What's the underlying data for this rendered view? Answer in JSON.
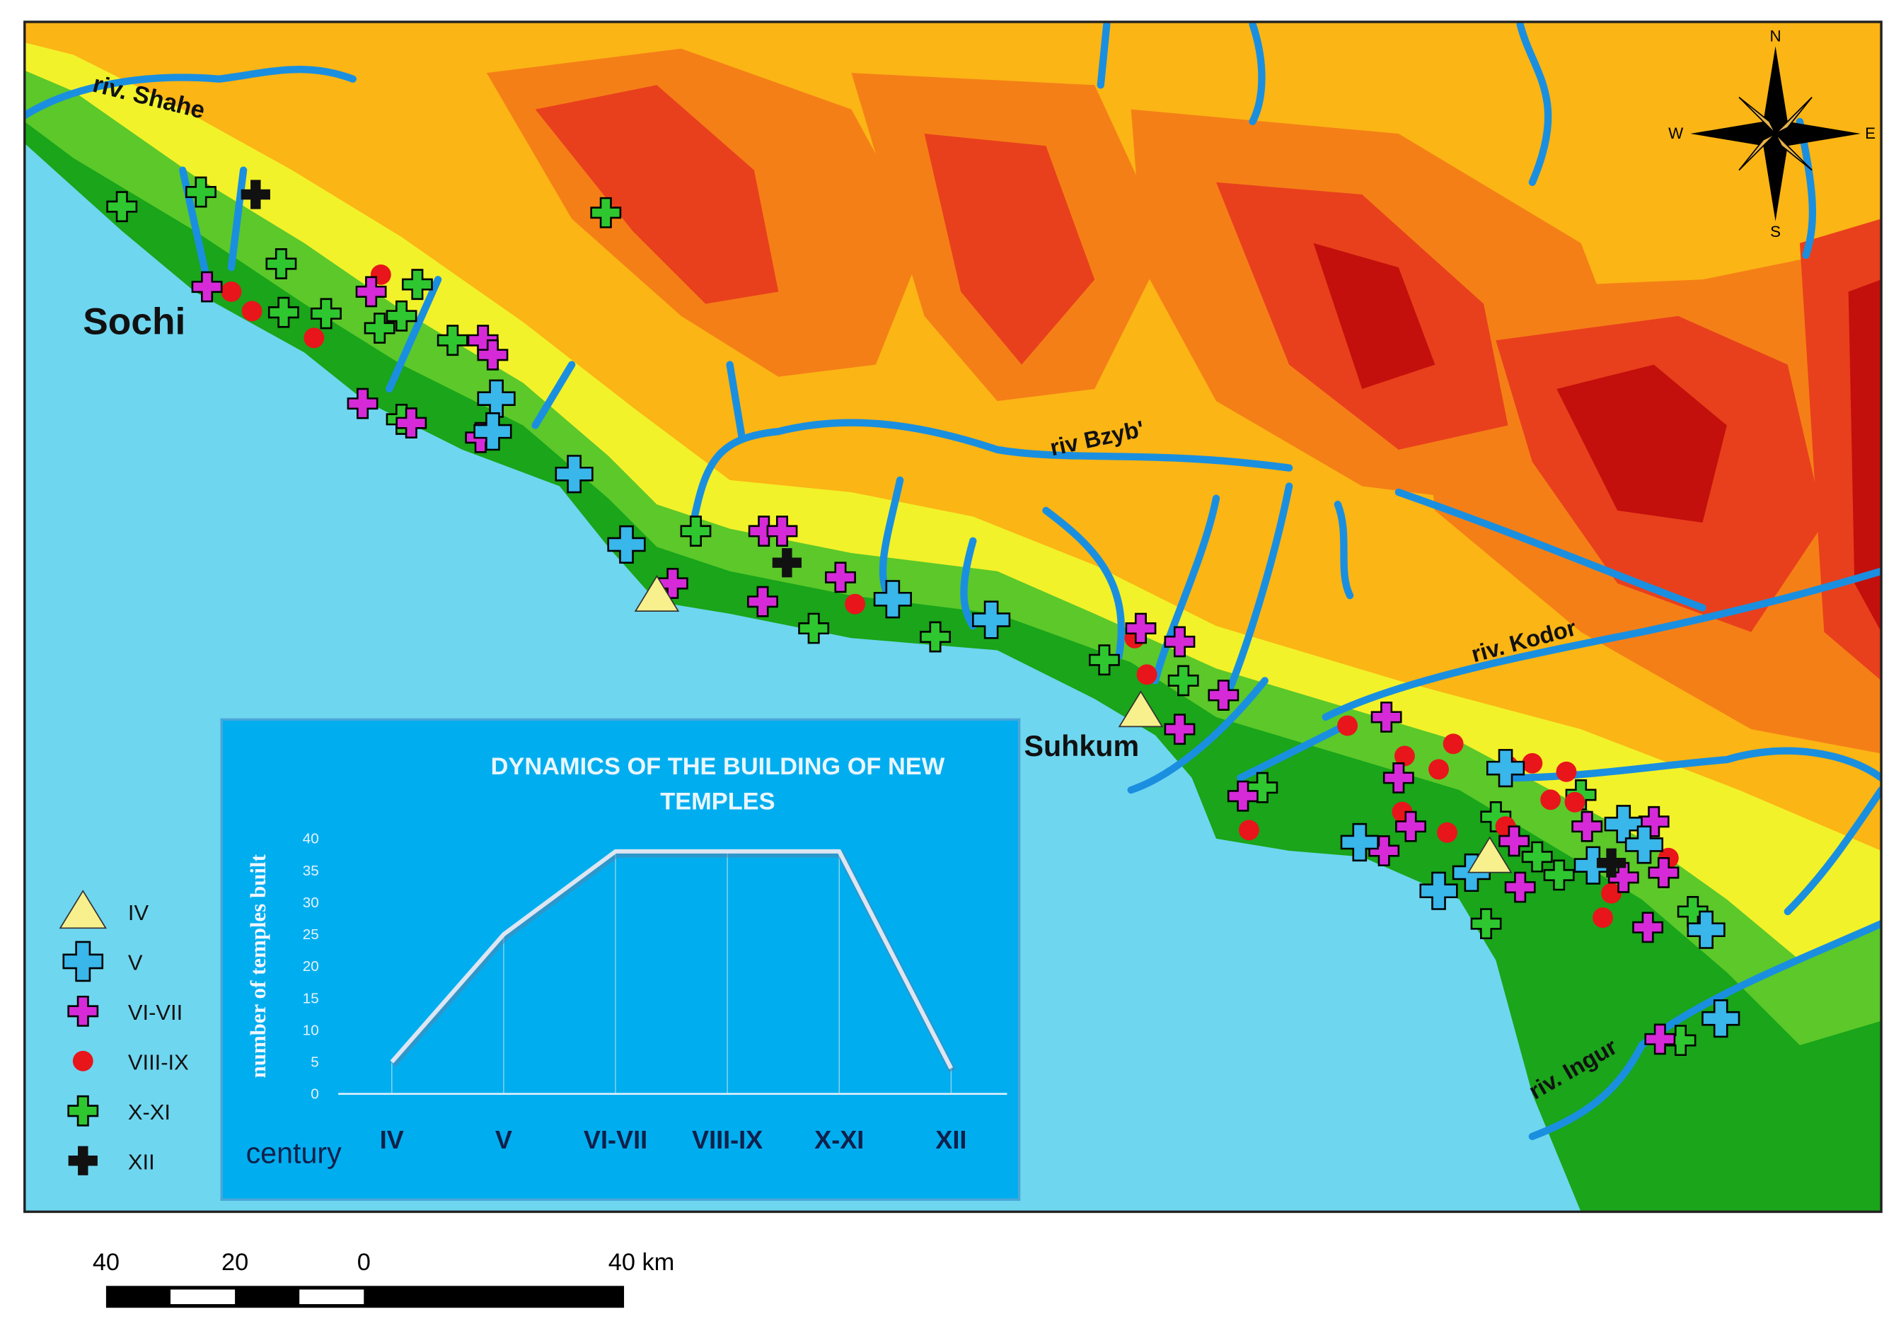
{
  "map_labels": [
    "riv. Shahe",
    "Sochi",
    "riv Bzyb'",
    "riv. Kodor",
    "Suhkum",
    "riv. Ingur"
  ],
  "compass": [
    "N",
    "S",
    "W",
    "E"
  ],
  "legend": [
    {
      "label": "IV",
      "color": "#f8f08c"
    },
    {
      "label": "V",
      "color": "#39b6ea"
    },
    {
      "label": "VI-VII",
      "color": "#d62ad8"
    },
    {
      "label": "VIII-IX",
      "color": "#e8151b"
    },
    {
      "label": "X-XI",
      "color": "#2fc72f"
    },
    {
      "label": "XII",
      "color": "#111111"
    }
  ],
  "scale_bar": [
    "40",
    "20",
    "0",
    "40 km"
  ],
  "chart_data": {
    "type": "line",
    "title": "DYNAMICS OF THE BUILDING OF NEW TEMPLES",
    "y_label": "number of temples built",
    "x_label": "century",
    "categories": [
      "IV",
      "V",
      "VI-VII",
      "VIII-IX",
      "X-XI",
      "XII"
    ],
    "values": [
      5,
      25,
      38,
      38,
      38,
      4
    ],
    "color": "#dde6f2",
    "ylim": [
      0,
      40
    ],
    "yticks": [
      0,
      5,
      10,
      15,
      20,
      25,
      30,
      35,
      40
    ]
  }
}
